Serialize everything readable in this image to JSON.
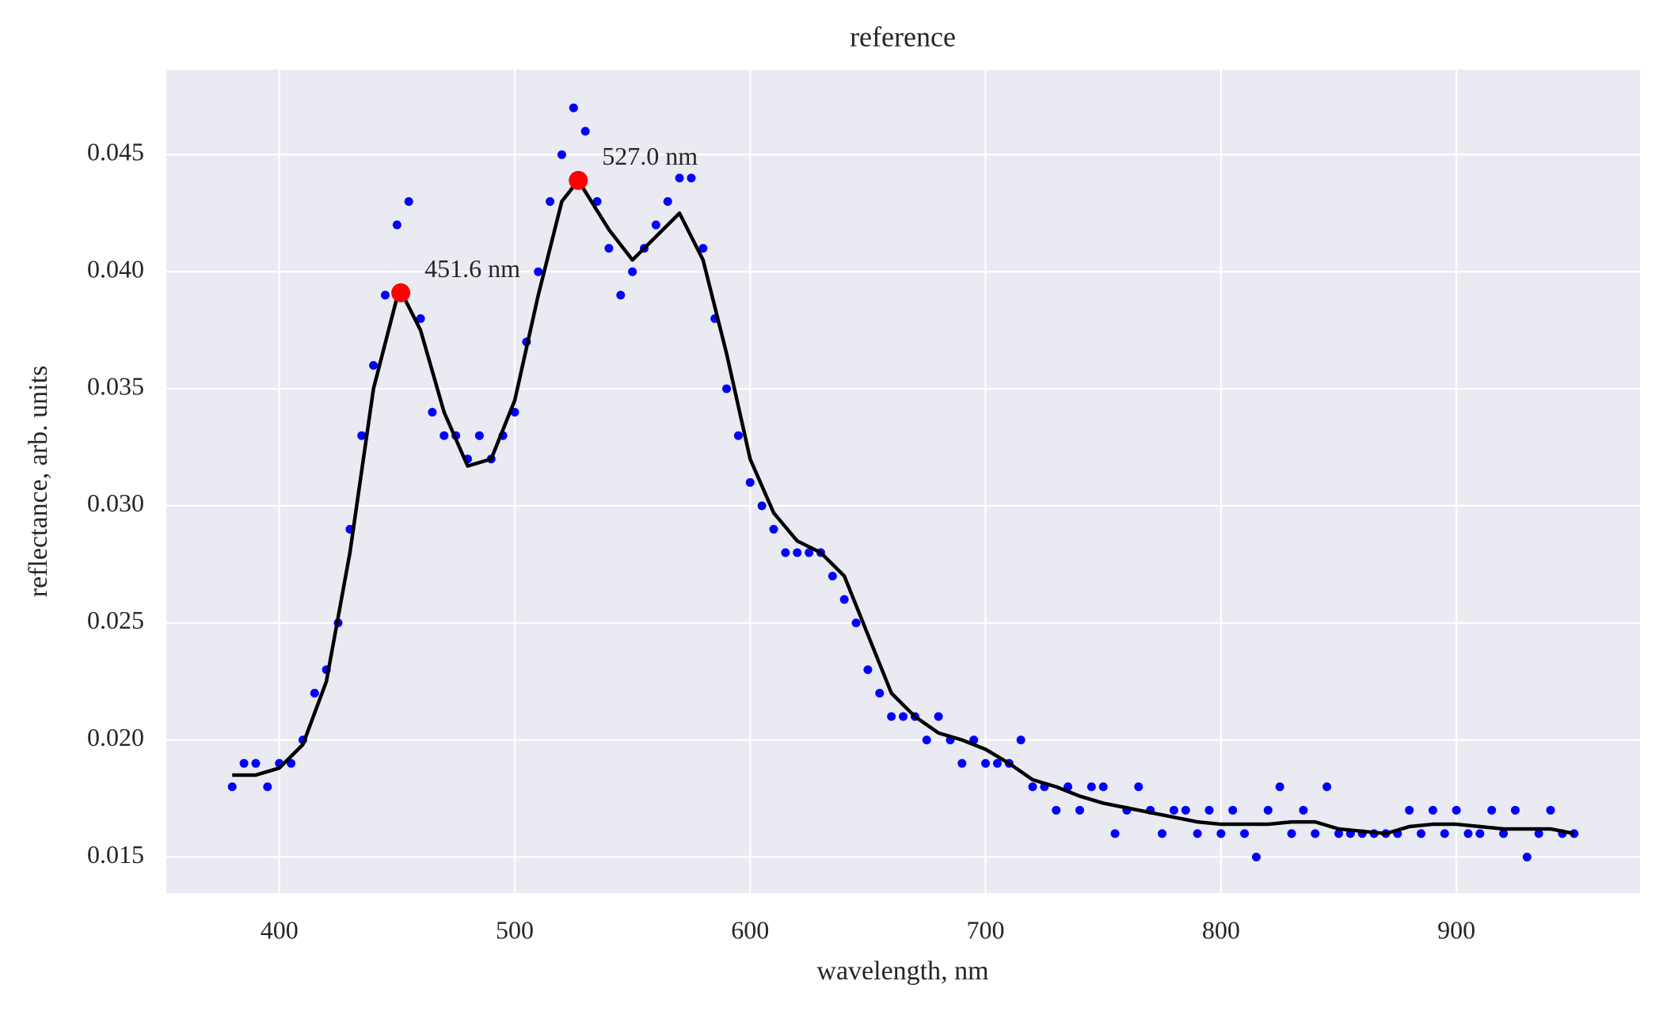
{
  "chart_data": {
    "type": "scatter",
    "title": "reference",
    "x_label": "wavelength, nm",
    "y_label": "reflectance, arb. units",
    "xlim": [
      352,
      978
    ],
    "ylim": [
      0.01346,
      0.04863
    ],
    "xticks": [
      400,
      500,
      600,
      700,
      800,
      900
    ],
    "yticks": [
      0.015,
      {
        "value": 0.02,
        "label": "0.020"
      },
      0.025,
      {
        "value": 0.03,
        "label": "0.030"
      },
      0.035,
      {
        "value": 0.04,
        "label": "0.040"
      },
      0.045
    ],
    "grid": true,
    "background": "#eaeaf2",
    "series": [
      {
        "type": "scatter",
        "color": "#0000ff",
        "x": [
          380,
          385,
          390,
          395,
          400,
          405,
          410,
          415,
          420,
          425,
          430,
          435,
          440,
          445,
          450,
          455,
          460,
          465,
          470,
          475,
          480,
          485,
          490,
          495,
          500,
          505,
          510,
          515,
          520,
          525,
          530,
          535,
          540,
          545,
          550,
          555,
          560,
          565,
          570,
          575,
          580,
          585,
          590,
          595,
          600,
          605,
          610,
          615,
          620,
          625,
          630,
          635,
          640,
          645,
          650,
          655,
          660,
          665,
          670,
          675,
          680,
          685,
          690,
          695,
          700,
          705,
          710,
          715,
          720,
          725,
          730,
          735,
          740,
          745,
          750,
          755,
          760,
          765,
          770,
          775,
          780,
          785,
          790,
          795,
          800,
          805,
          810,
          815,
          820,
          825,
          830,
          835,
          840,
          845,
          850,
          855,
          860,
          865,
          870,
          875,
          880,
          885,
          890,
          895,
          900,
          905,
          910,
          915,
          920,
          925,
          930,
          935,
          940,
          945,
          950
        ],
        "values": [
          0.018,
          0.019,
          0.019,
          0.018,
          0.019,
          0.019,
          0.02,
          0.022,
          0.023,
          0.025,
          0.029,
          0.033,
          0.036,
          0.039,
          0.042,
          0.043,
          0.038,
          0.034,
          0.033,
          0.033,
          0.032,
          0.033,
          0.032,
          0.033,
          0.034,
          0.037,
          0.04,
          0.043,
          0.045,
          0.047,
          0.046,
          0.043,
          0.041,
          0.039,
          0.04,
          0.041,
          0.042,
          0.043,
          0.044,
          0.044,
          0.041,
          0.038,
          0.035,
          0.033,
          0.031,
          0.03,
          0.029,
          0.028,
          0.028,
          0.028,
          0.028,
          0.027,
          0.026,
          0.025,
          0.023,
          0.022,
          0.021,
          0.021,
          0.021,
          0.02,
          0.021,
          0.02,
          0.019,
          0.02,
          0.019,
          0.019,
          0.019,
          0.02,
          0.018,
          0.018,
          0.017,
          0.018,
          0.017,
          0.018,
          0.018,
          0.016,
          0.017,
          0.018,
          0.017,
          0.016,
          0.017,
          0.017,
          0.016,
          0.017,
          0.016,
          0.017,
          0.016,
          0.015,
          0.017,
          0.018,
          0.016,
          0.017,
          0.016,
          0.018,
          0.016,
          0.016,
          0.016,
          0.016,
          0.016,
          0.016,
          0.017,
          0.016,
          0.017,
          0.016,
          0.017,
          0.016,
          0.016,
          0.017,
          0.016,
          0.017,
          0.015,
          0.016,
          0.017,
          0.016,
          0.016
        ]
      },
      {
        "type": "line",
        "color": "#000000",
        "x": [
          380,
          390,
          400,
          410,
          420,
          430,
          440,
          450,
          452,
          460,
          470,
          480,
          490,
          500,
          510,
          520,
          527,
          540,
          550,
          560,
          570,
          580,
          590,
          600,
          610,
          620,
          630,
          640,
          650,
          660,
          670,
          680,
          690,
          700,
          710,
          720,
          730,
          740,
          750,
          760,
          770,
          780,
          790,
          800,
          810,
          820,
          830,
          840,
          850,
          860,
          870,
          880,
          890,
          900,
          910,
          920,
          930,
          940,
          950
        ],
        "values": [
          0.0185,
          0.0185,
          0.0188,
          0.0198,
          0.0225,
          0.028,
          0.035,
          0.0389,
          0.0391,
          0.0375,
          0.034,
          0.0317,
          0.032,
          0.0345,
          0.039,
          0.043,
          0.0439,
          0.0418,
          0.0405,
          0.0415,
          0.0425,
          0.0405,
          0.0365,
          0.032,
          0.0297,
          0.0285,
          0.028,
          0.027,
          0.0245,
          0.022,
          0.021,
          0.0203,
          0.02,
          0.0196,
          0.019,
          0.0183,
          0.018,
          0.0176,
          0.0173,
          0.0171,
          0.0169,
          0.0167,
          0.0165,
          0.0164,
          0.0164,
          0.0164,
          0.0165,
          0.0165,
          0.0162,
          0.0161,
          0.016,
          0.0163,
          0.0164,
          0.0164,
          0.0163,
          0.0162,
          0.0162,
          0.0162,
          0.016
        ]
      },
      {
        "type": "scatter",
        "color": "#ff0000",
        "x": [
          451.6,
          527.0
        ],
        "values": [
          0.0391,
          0.0439
        ],
        "value_labels": [
          "451.6 nm",
          "527.0 nm"
        ]
      }
    ]
  }
}
